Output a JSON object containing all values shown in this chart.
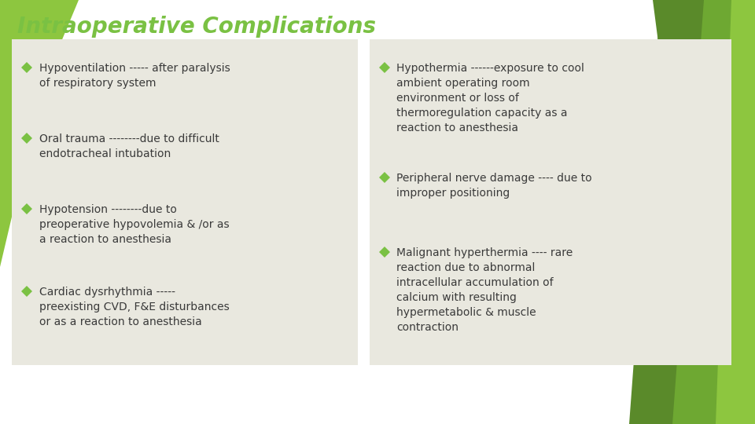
{
  "title": "Intraoperative Complications",
  "title_color": "#7ac143",
  "title_fontsize": 20,
  "background_color": "#ffffff",
  "bg_green_light": "#8dc63f",
  "bg_green_dark": "#5a8a2a",
  "bg_green_mid": "#6ea832",
  "box_bg_color": "#e9e8df",
  "bullet_color": "#7ac143",
  "text_color": "#3a3a3a",
  "left_bullets": [
    "Hypoventilation ----- after paralysis\nof respiratory system",
    "Oral trauma --------due to difficult\nendotracheal intubation",
    "Hypotension --------due to\npreoperative hypovolemia & /or as\na reaction to anesthesia",
    "Cardiac dysrhythmia -----\npreexisting CVD, F&E disturbances\nor as a reaction to anesthesia"
  ],
  "right_bullets": [
    "Hypothermia ------exposure to cool\nambient operating room\nenvironment or loss of\nthermoregulation capacity as a\nreaction to anesthesia",
    "Peripheral nerve damage ---- due to\nimproper positioning",
    "Malignant hyperthermia ---- rare\nreaction due to abnormal\nintracellular accumulation of\ncalcium with resulting\nhypermetabolic & muscle\ncontraction"
  ]
}
